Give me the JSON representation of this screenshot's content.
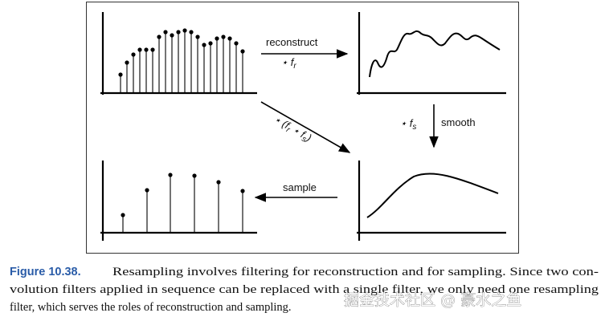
{
  "figure": {
    "labels": {
      "reconstruct": "reconstruct",
      "fr": {
        "op": "⋆ f",
        "sub": "r"
      },
      "combined": {
        "op1": "⋆ (f",
        "sub1": "r",
        "op2": " ⋆ f",
        "sub2": "s",
        "close": ")"
      },
      "fs": {
        "op": "⋆ f",
        "sub": "s"
      },
      "smooth": "smooth",
      "sample": "sample"
    },
    "caption": {
      "label": "Figure 10.38.",
      "lines": [
        "Resampling involves filtering for reconstruction and for sampling. Since two con-",
        "volution filters applied in sequence can be replaced with a single filter, we only need one resampling",
        "filter, which serves the roles of reconstruction and sampling."
      ]
    },
    "watermark": "掘金技术社区 @ 豪水之鱼"
  }
}
